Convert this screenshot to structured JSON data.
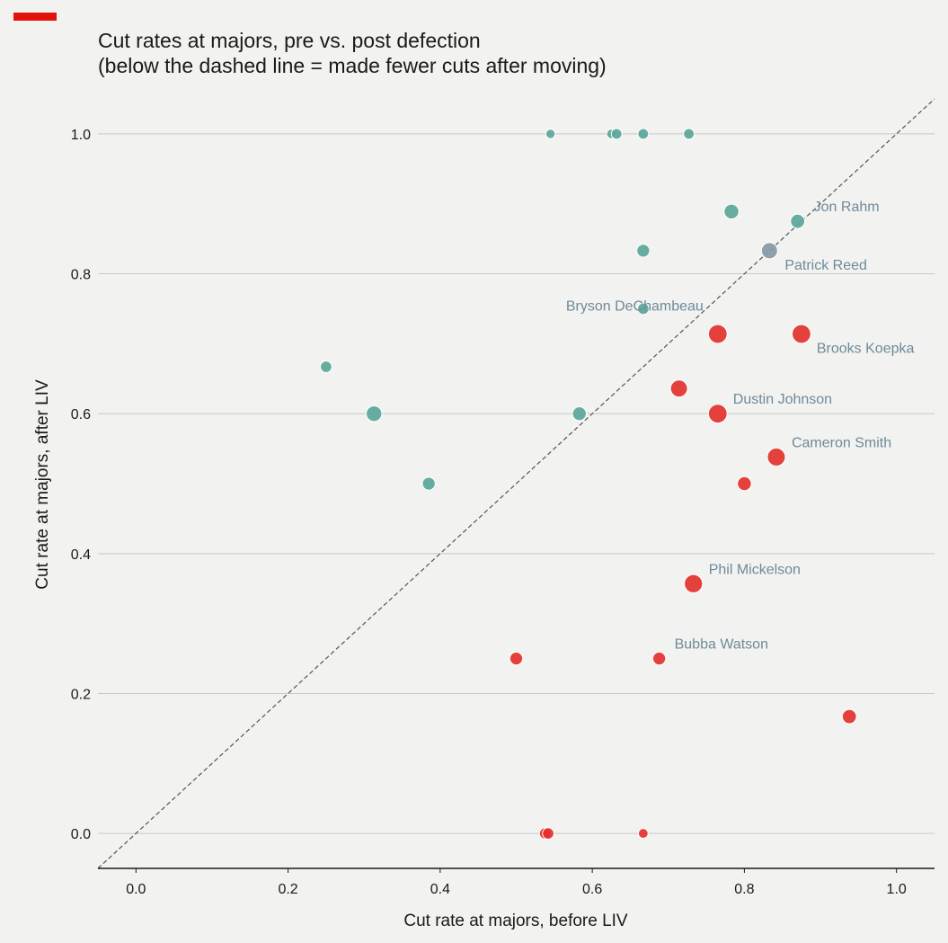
{
  "title_lines": [
    "Cut rates at majors, pre vs. post defection",
    "(below the dashed line = made fewer cuts after moving)"
  ],
  "colors": {
    "brand": "#e3120b",
    "improved": "#5fa89c",
    "declined": "#e3312d",
    "neutral": "#8a9aa8",
    "annotation": "#6f8a9a",
    "diagonal": "#555555",
    "grid": "#c8c8c8"
  },
  "chart_data": {
    "type": "scatter",
    "title": "Cut rates at majors, pre vs. post defection",
    "subtitle": "(below the dashed line = made fewer cuts after moving)",
    "xlabel": "Cut rate at majors, before LIV",
    "ylabel": "Cut rate at majors, after LIV",
    "xlim": [
      -0.05,
      1.05
    ],
    "ylim": [
      -0.05,
      1.05
    ],
    "xticks": [
      "0.0",
      "0.2",
      "0.4",
      "0.6",
      "0.8",
      "1.0"
    ],
    "yticks": [
      "0.0",
      "0.2",
      "0.4",
      "0.6",
      "0.8",
      "1.0"
    ],
    "grid": "horizontal",
    "reference_line": "y = x (dashed)",
    "points": [
      {
        "x": 0.545,
        "y": 1.0,
        "size": 1,
        "group": "improved"
      },
      {
        "x": 0.625,
        "y": 1.0,
        "size": 1,
        "group": "improved"
      },
      {
        "x": 0.632,
        "y": 1.0,
        "size": 1.3,
        "group": "improved"
      },
      {
        "x": 0.667,
        "y": 1.0,
        "size": 1.3,
        "group": "improved"
      },
      {
        "x": 0.727,
        "y": 1.0,
        "size": 1.3,
        "group": "improved"
      },
      {
        "x": 0.783,
        "y": 0.889,
        "size": 2.5,
        "group": "improved"
      },
      {
        "x": 0.87,
        "y": 0.875,
        "size": 2.3,
        "group": "improved",
        "label": "Jon Rahm"
      },
      {
        "x": 0.667,
        "y": 0.833,
        "size": 1.9,
        "group": "improved"
      },
      {
        "x": 0.833,
        "y": 0.833,
        "size": 3,
        "group": "neutral",
        "label": "Patrick Reed"
      },
      {
        "x": 0.667,
        "y": 0.75,
        "size": 1.5,
        "group": "improved",
        "label": "Bryson DeChambeau"
      },
      {
        "x": 0.765,
        "y": 0.714,
        "size": 4,
        "group": "declined"
      },
      {
        "x": 0.875,
        "y": 0.714,
        "size": 4,
        "group": "declined",
        "label": "Brooks Koepka"
      },
      {
        "x": 0.25,
        "y": 0.667,
        "size": 1.5,
        "group": "improved"
      },
      {
        "x": 0.714,
        "y": 0.636,
        "size": 3.3,
        "group": "declined"
      },
      {
        "x": 0.313,
        "y": 0.6,
        "size": 2.8,
        "group": "improved"
      },
      {
        "x": 0.583,
        "y": 0.6,
        "size": 2.2,
        "group": "improved"
      },
      {
        "x": 0.765,
        "y": 0.6,
        "size": 4,
        "group": "declined",
        "label": "Dustin Johnson"
      },
      {
        "x": 0.842,
        "y": 0.538,
        "size": 3.7,
        "group": "declined",
        "label": "Cameron Smith"
      },
      {
        "x": 0.385,
        "y": 0.5,
        "size": 1.9,
        "group": "improved"
      },
      {
        "x": 0.8,
        "y": 0.5,
        "size": 2.2,
        "group": "declined"
      },
      {
        "x": 0.733,
        "y": 0.357,
        "size": 3.8,
        "group": "declined",
        "label": "Phil Mickelson"
      },
      {
        "x": 0.5,
        "y": 0.25,
        "size": 1.9,
        "group": "declined"
      },
      {
        "x": 0.688,
        "y": 0.25,
        "size": 1.9,
        "group": "declined",
        "label": "Bubba Watson"
      },
      {
        "x": 0.938,
        "y": 0.167,
        "size": 2.3,
        "group": "declined"
      },
      {
        "x": 0.538,
        "y": 0.0,
        "size": 1.5,
        "group": "declined"
      },
      {
        "x": 0.542,
        "y": 0.0,
        "size": 1.5,
        "group": "declined"
      },
      {
        "x": 0.667,
        "y": 0.0,
        "size": 1.1,
        "group": "declined"
      }
    ]
  }
}
